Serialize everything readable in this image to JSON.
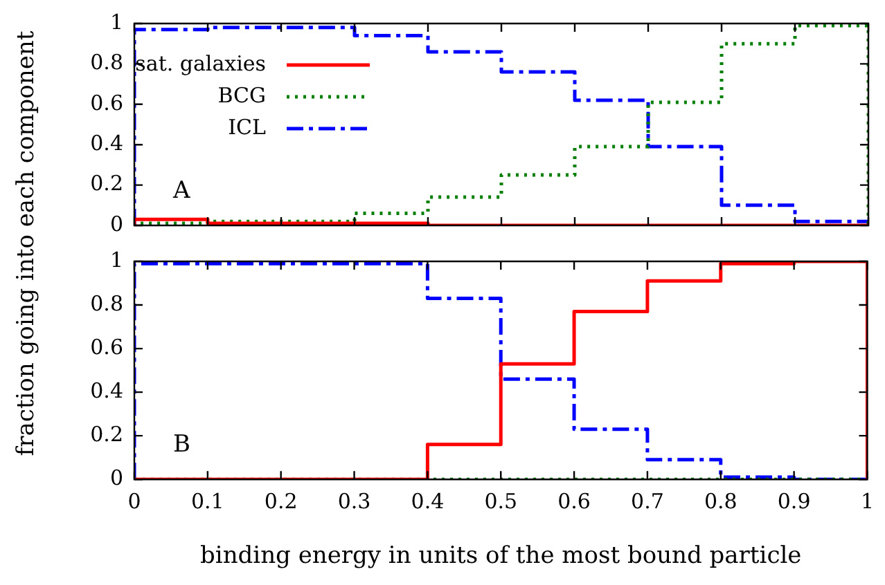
{
  "chart_data": [
    {
      "type": "histogram",
      "ylabel": "fraction going into each component",
      "annotations": [
        "A"
      ],
      "bins": [
        0,
        0.1,
        0.2,
        0.3,
        0.4,
        0.5,
        0.6,
        0.7,
        0.8,
        0.9,
        1
      ],
      "xlim": [
        0,
        1
      ],
      "ylim": [
        0,
        1
      ],
      "xticks": [
        0,
        0.1,
        0.2,
        0.3,
        0.4,
        0.5,
        0.6,
        0.7,
        0.8,
        0.9,
        1
      ],
      "yticks": [
        0,
        0.2,
        0.4,
        0.6,
        0.8,
        1
      ],
      "tick_labels": "y",
      "grid": false,
      "legend": "top left",
      "series": [
        {
          "name": "sat. galaxies",
          "color": "#ff0000",
          "line_style": "solid",
          "values": [
            0.03,
            0.01,
            0.01,
            0.01,
            0,
            0,
            0,
            0,
            0,
            0
          ]
        },
        {
          "name": "BCG",
          "color": "#007f00",
          "line_style": "dotted",
          "values": [
            0.01,
            0.02,
            0.02,
            0.06,
            0.14,
            0.25,
            0.39,
            0.61,
            0.9,
            0.99
          ]
        },
        {
          "name": "ICL",
          "color": "#0000ff",
          "line_style": "dashed",
          "values": [
            0.97,
            0.98,
            0.98,
            0.94,
            0.86,
            0.76,
            0.62,
            0.39,
            0.1,
            0.02
          ]
        }
      ]
    },
    {
      "type": "histogram",
      "xlabel": "binding energy in units of the most bound particle",
      "annotations": [
        "B"
      ],
      "bins": [
        0,
        0.1,
        0.2,
        0.3,
        0.4,
        0.5,
        0.6,
        0.7,
        0.8,
        0.9,
        1
      ],
      "xlim": [
        0,
        1
      ],
      "ylim": [
        0,
        1
      ],
      "xticks": [
        0,
        0.1,
        0.2,
        0.3,
        0.4,
        0.5,
        0.6,
        0.7,
        0.8,
        0.9,
        1
      ],
      "yticks": [
        0,
        0.2,
        0.4,
        0.6,
        0.8,
        1
      ],
      "grid": false,
      "series": [
        {
          "color": "#ff0000",
          "line_style": "solid",
          "values": [
            0,
            0,
            0,
            0,
            0.16,
            0.53,
            0.77,
            0.91,
            0.99,
            1
          ]
        },
        {
          "color": "#007f00",
          "line_style": "dotted",
          "values": [
            0,
            0,
            0,
            0,
            0,
            0,
            0,
            0,
            0,
            0
          ]
        },
        {
          "color": "#0000ff",
          "line_style": "dashed",
          "values": [
            0.99,
            0.99,
            0.99,
            0.99,
            0.83,
            0.46,
            0.23,
            0.09,
            0.01,
            0
          ]
        }
      ]
    }
  ]
}
